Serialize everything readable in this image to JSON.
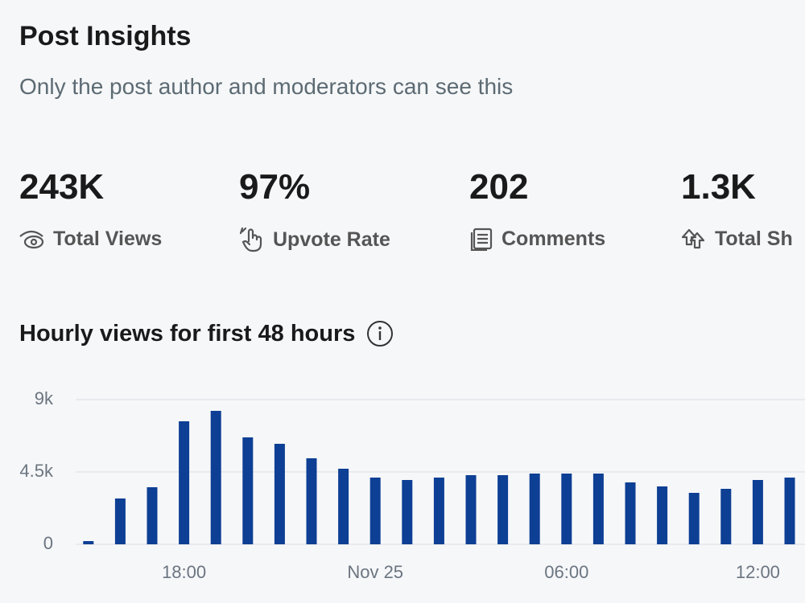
{
  "header": {
    "title": "Post Insights",
    "subtitle": "Only the post author and moderators can see this"
  },
  "stats": [
    {
      "value": "243K",
      "label": "Total Views"
    },
    {
      "value": "97%",
      "label": "Upvote Rate"
    },
    {
      "value": "202",
      "label": "Comments"
    },
    {
      "value": "1.3K",
      "label": "Total Sh"
    }
  ],
  "chart_data": {
    "type": "bar",
    "title": "Hourly views for first 48 hours",
    "categories": [
      null,
      null,
      null,
      "18:00",
      null,
      null,
      null,
      null,
      null,
      "Nov 25",
      null,
      null,
      null,
      null,
      null,
      "06:00",
      null,
      null,
      null,
      null,
      null,
      "12:00",
      null
    ],
    "values": [
      200,
      2850,
      3550,
      7650,
      8300,
      6650,
      6250,
      5350,
      4700,
      4150,
      4000,
      4150,
      4300,
      4300,
      4400,
      4400,
      4400,
      3850,
      3600,
      3200,
      3450,
      4000,
      4150
    ],
    "color": "#0d3f94",
    "ylim": [
      0,
      9000
    ],
    "yticks": [
      0,
      {
        "value": 4500,
        "label": "4.5k"
      },
      {
        "value": 9000,
        "label": "9k"
      }
    ],
    "grid": true
  }
}
